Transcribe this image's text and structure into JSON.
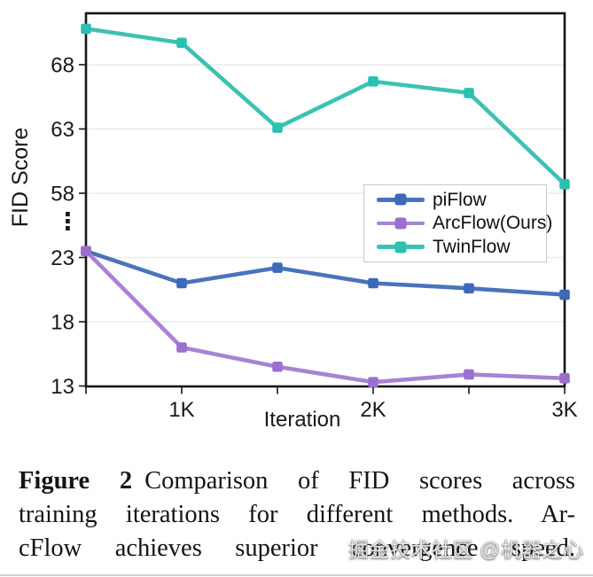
{
  "figure": {
    "label": "Figure 2",
    "line1": "Comparison of FID scores across",
    "line2": "training iterations for different methods.  Ar-",
    "line3": "cFlow achieves superior convergence speed."
  },
  "watermark": {
    "text": "掘金技术社区 @机器之心"
  },
  "chart_data": {
    "type": "line",
    "title": "",
    "xlabel": "Iteration",
    "ylabel": "FID Score",
    "x": [
      500,
      1000,
      1500,
      2000,
      2500,
      3000
    ],
    "x_ticks": [
      500,
      1000,
      1500,
      2000,
      2500,
      3000
    ],
    "x_tick_labels": {
      "1000": "1K",
      "2000": "2K",
      "3000": "3K"
    },
    "xlim": [
      500,
      3000
    ],
    "y_axis_break": true,
    "y_break_label": "⋮",
    "y_ticks_lower": [
      13,
      18,
      23
    ],
    "y_ticks_upper": [
      58,
      63,
      68
    ],
    "ylim_lower": [
      13,
      24
    ],
    "ylim_upper": [
      55,
      72
    ],
    "grid": true,
    "legend_position": "center-right",
    "series": [
      {
        "name": "piFlow",
        "color": "#4a73bc",
        "marker_color": "#3e68b8",
        "values": [
          23.5,
          21.0,
          22.2,
          21.0,
          20.6,
          20.1
        ]
      },
      {
        "name": "ArcFlow(Ours)",
        "color": "#a783d4",
        "marker_color": "#9a6fce",
        "values": [
          23.5,
          16.0,
          14.5,
          13.3,
          13.9,
          13.6
        ]
      },
      {
        "name": "TwinFlow",
        "color": "#3cc2b1",
        "marker_color": "#2bc1b0",
        "values": [
          70.8,
          69.7,
          63.1,
          66.7,
          65.8,
          58.7
        ]
      }
    ],
    "colors": {
      "grid": "#e8e8e8",
      "axis": "#161616",
      "tick_label": "#191919"
    }
  }
}
